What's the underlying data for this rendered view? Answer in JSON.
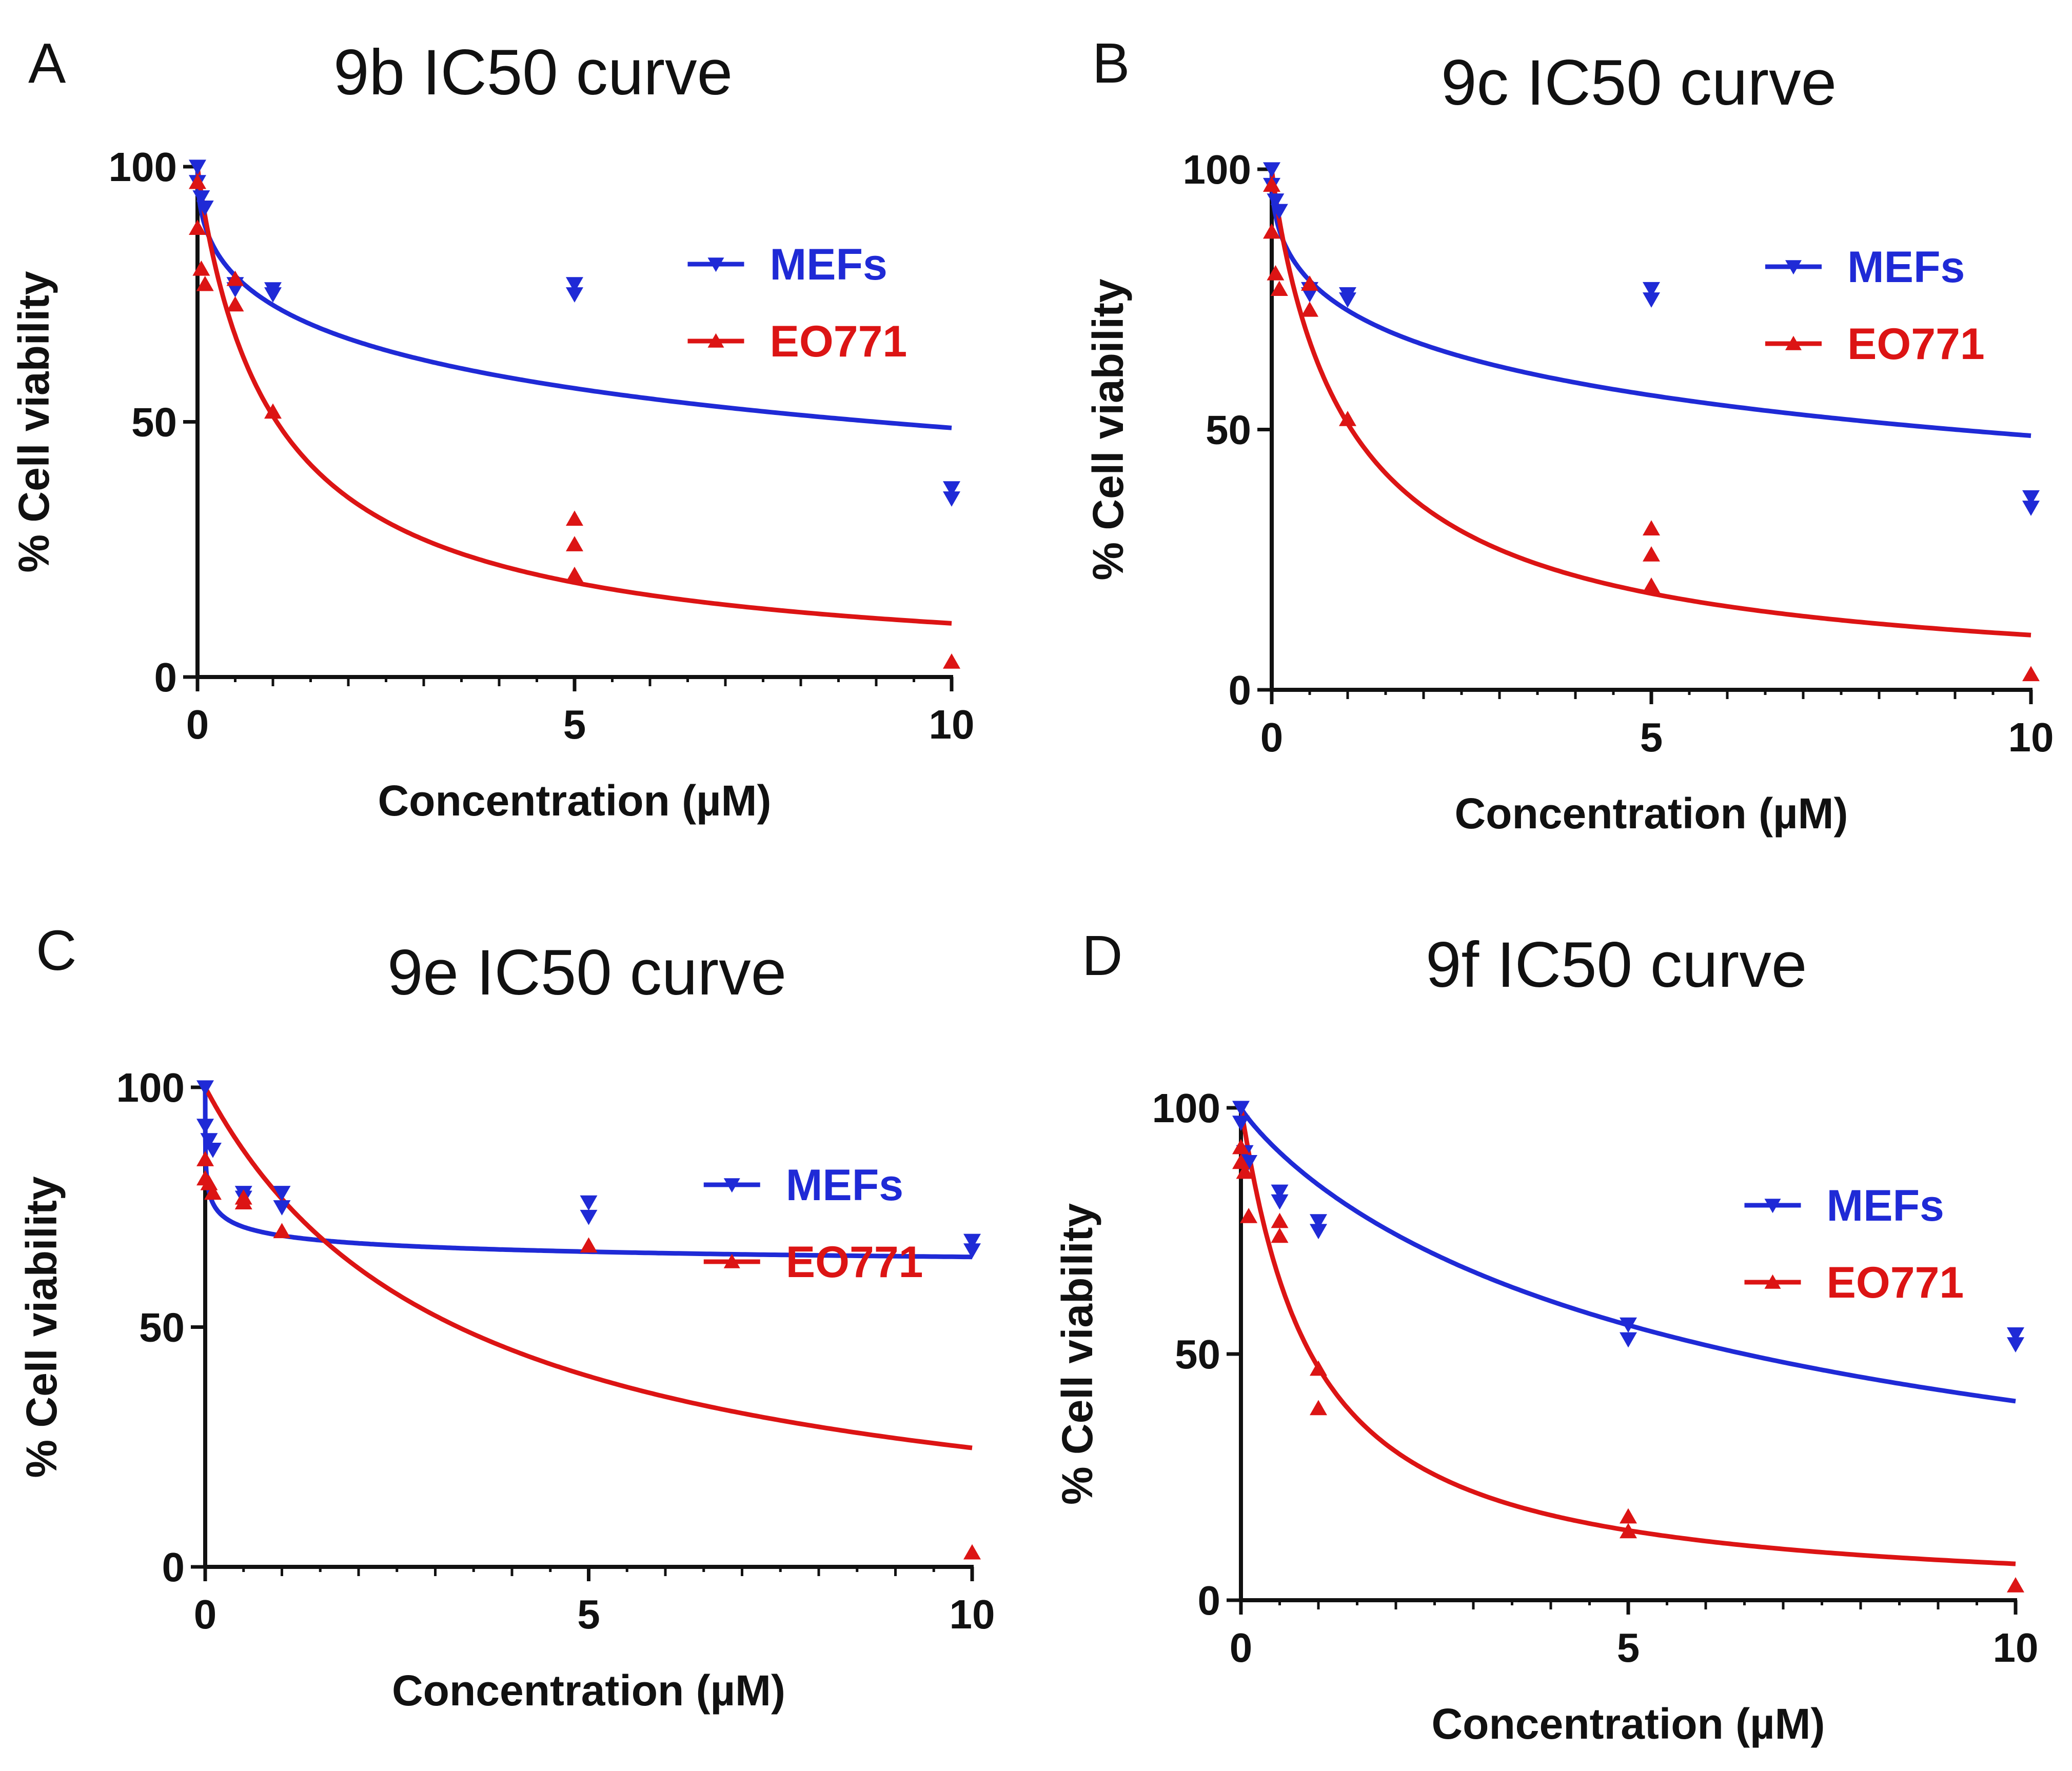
{
  "figure": {
    "description_label": "IC50 curves"
  },
  "colors": {
    "mefs": "#1f2ad6",
    "eo771": "#dc1414",
    "axis": "#111111"
  },
  "chart_data": [
    {
      "type": "scatter",
      "letter": "A",
      "title": "9b IC50 curve",
      "xlabel": "Concentration (µM)",
      "ylabel": "% Cell viability",
      "xlim": [
        0,
        10
      ],
      "ylim": [
        0,
        100
      ],
      "xticks": [
        "0",
        "5",
        "10"
      ],
      "yticks": [
        "0",
        "50",
        "100"
      ],
      "legend": [
        "MEFs",
        "EO771"
      ],
      "series": [
        {
          "name": "MEFs",
          "marker": "triangle-down",
          "points": [
            [
              0,
              100
            ],
            [
              0,
              97
            ],
            [
              0.05,
              94
            ],
            [
              0.1,
              92
            ],
            [
              0.5,
              77
            ],
            [
              0.5,
              76
            ],
            [
              1,
              76
            ],
            [
              1,
              75
            ],
            [
              5,
              77
            ],
            [
              5,
              75
            ],
            [
              10,
              37
            ],
            [
              10,
              35
            ]
          ],
          "curve": {
            "top": 100,
            "ic50": 9.0,
            "hill": 0.45
          }
        },
        {
          "name": "EO771",
          "marker": "triangle-up",
          "points": [
            [
              0,
              97
            ],
            [
              0,
              88
            ],
            [
              0.05,
              80
            ],
            [
              0.1,
              77
            ],
            [
              0.5,
              78
            ],
            [
              0.5,
              73
            ],
            [
              1,
              52
            ],
            [
              5,
              31
            ],
            [
              5,
              26
            ],
            [
              5,
              20
            ],
            [
              10,
              3
            ]
          ],
          "curve": {
            "top": 100,
            "ic50": 1.05,
            "hill": 0.95
          }
        }
      ]
    },
    {
      "type": "scatter",
      "letter": "B",
      "title": "9c IC50 curve",
      "xlabel": "Concentration (µM)",
      "ylabel": "% Cell viability",
      "xlim": [
        0,
        10
      ],
      "ylim": [
        0,
        100
      ],
      "xticks": [
        "0",
        "5",
        "10"
      ],
      "yticks": [
        "0",
        "50",
        "100"
      ],
      "legend": [
        "MEFs",
        "EO771"
      ],
      "series": [
        {
          "name": "MEFs",
          "marker": "triangle-down",
          "points": [
            [
              0,
              100
            ],
            [
              0,
              97
            ],
            [
              0.05,
              94
            ],
            [
              0.1,
              92
            ],
            [
              0.5,
              77
            ],
            [
              0.5,
              76
            ],
            [
              1,
              76
            ],
            [
              1,
              75
            ],
            [
              5,
              77
            ],
            [
              5,
              75
            ],
            [
              10,
              37
            ],
            [
              10,
              35
            ]
          ],
          "curve": {
            "top": 100,
            "ic50": 9.0,
            "hill": 0.45
          }
        },
        {
          "name": "EO771",
          "marker": "triangle-up",
          "points": [
            [
              0,
              97
            ],
            [
              0,
              88
            ],
            [
              0.05,
              80
            ],
            [
              0.1,
              77
            ],
            [
              0.5,
              78
            ],
            [
              0.5,
              73
            ],
            [
              1,
              52
            ],
            [
              5,
              31
            ],
            [
              5,
              26
            ],
            [
              5,
              20
            ],
            [
              10,
              3
            ]
          ],
          "curve": {
            "top": 100,
            "ic50": 1.05,
            "hill": 0.95
          }
        }
      ]
    },
    {
      "type": "scatter",
      "letter": "C",
      "title": "9e IC50 curve",
      "xlabel": "Concentration (µM)",
      "ylabel": "% Cell viability",
      "xlim": [
        0,
        10
      ],
      "ylim": [
        0,
        100
      ],
      "xticks": [
        "0",
        "5",
        "10"
      ],
      "yticks": [
        "0",
        "50",
        "100"
      ],
      "legend": [
        "MEFs",
        "EO771"
      ],
      "series": [
        {
          "name": "MEFs",
          "marker": "triangle-down",
          "points": [
            [
              0,
              100
            ],
            [
              0,
              92
            ],
            [
              0.05,
              89
            ],
            [
              0.1,
              87
            ],
            [
              0.5,
              78
            ],
            [
              0.5,
              77
            ],
            [
              1,
              78
            ],
            [
              1,
              75
            ],
            [
              5,
              76
            ],
            [
              5,
              73
            ],
            [
              10,
              68
            ],
            [
              10,
              66
            ]
          ],
          "curve": {
            "top": 100,
            "bottom": 60,
            "ic50": 0.03,
            "hill": 0.35
          }
        },
        {
          "name": "EO771",
          "marker": "triangle-up",
          "points": [
            [
              0,
              85
            ],
            [
              0,
              81
            ],
            [
              0.05,
              80
            ],
            [
              0.1,
              78
            ],
            [
              0.5,
              77
            ],
            [
              0.5,
              76
            ],
            [
              1,
              70
            ],
            [
              5,
              67
            ],
            [
              10,
              3
            ]
          ],
          "curve": {
            "top": 100,
            "ic50": 3.3,
            "hill": 1.0
          }
        }
      ]
    },
    {
      "type": "scatter",
      "letter": "D",
      "title": "9f IC50 curve",
      "xlabel": "Concentration (µM)",
      "ylabel": "% Cell viability",
      "xlim": [
        0,
        10
      ],
      "ylim": [
        0,
        100
      ],
      "xticks": [
        "0",
        "5",
        "10"
      ],
      "yticks": [
        "0",
        "50",
        "100"
      ],
      "legend": [
        "MEFs",
        "EO771"
      ],
      "series": [
        {
          "name": "MEFs",
          "marker": "triangle-down",
          "points": [
            [
              0,
              100
            ],
            [
              0,
              97
            ],
            [
              0.05,
              91
            ],
            [
              0.1,
              89
            ],
            [
              0.5,
              83
            ],
            [
              0.5,
              81
            ],
            [
              1,
              77
            ],
            [
              1,
              75
            ],
            [
              5,
              56
            ],
            [
              5,
              53
            ],
            [
              10,
              54
            ],
            [
              10,
              52
            ]
          ],
          "curve": {
            "top": 100,
            "ic50": 6.5,
            "hill": 0.9
          }
        },
        {
          "name": "EO771",
          "marker": "triangle-up",
          "points": [
            [
              0,
              92
            ],
            [
              0,
              89
            ],
            [
              0.05,
              87
            ],
            [
              0.1,
              78
            ],
            [
              0.5,
              77
            ],
            [
              0.5,
              74
            ],
            [
              1,
              47
            ],
            [
              1,
              39
            ],
            [
              5,
              17
            ],
            [
              5,
              14
            ],
            [
              10,
              3
            ]
          ],
          "curve": {
            "top": 100,
            "ic50": 0.9,
            "hill": 1.05
          }
        }
      ]
    }
  ]
}
